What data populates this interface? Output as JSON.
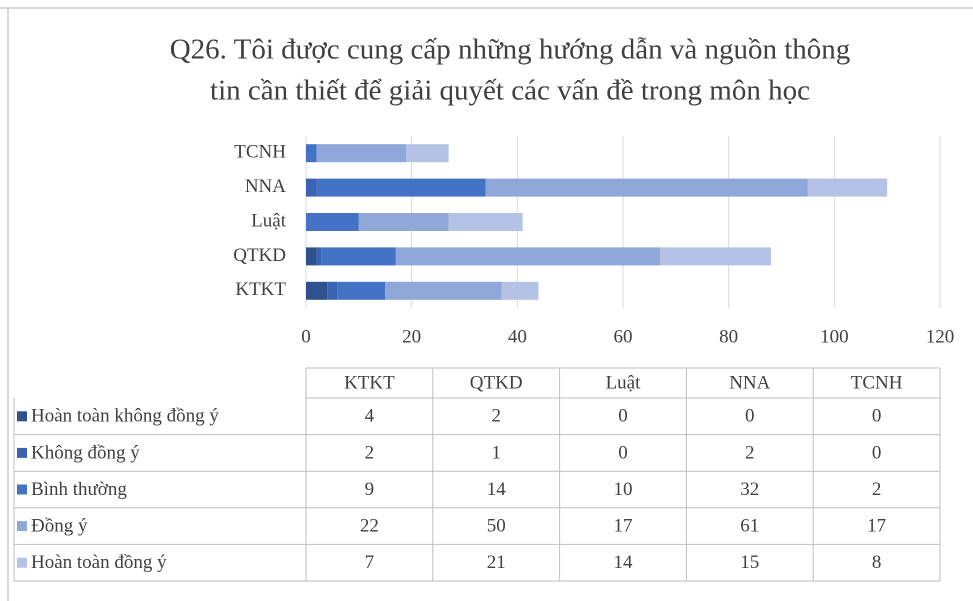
{
  "chart_data": {
    "type": "stacked_barh",
    "title": "Q26. Tôi được cung cấp những hướng dẫn và nguồn thông tin cần thiết để giải quyết các vấn đề trong môn học",
    "title_lines": [
      "Q26. Tôi được cung cấp những hướng dẫn và nguồn thông",
      "tin cần thiết để giải quyết các vấn đề trong môn học"
    ],
    "categories": [
      "KTKT",
      "QTKD",
      "Luật",
      "NNA",
      "TCNH"
    ],
    "series": [
      {
        "name": "Hoàn toàn không đồng ý",
        "color": "#2f528f",
        "values": [
          4,
          2,
          0,
          0,
          0
        ]
      },
      {
        "name": "Không đồng ý",
        "color": "#3b63b4",
        "values": [
          2,
          1,
          0,
          2,
          0
        ]
      },
      {
        "name": "Bình thường",
        "color": "#4472c4",
        "values": [
          9,
          14,
          10,
          32,
          2
        ]
      },
      {
        "name": "Đồng ý",
        "color": "#8fa7d9",
        "values": [
          22,
          50,
          17,
          61,
          17
        ]
      },
      {
        "name": "Hoàn toàn đồng ý",
        "color": "#b4c2e6",
        "values": [
          7,
          21,
          14,
          15,
          8
        ]
      }
    ],
    "xlim": [
      0,
      120
    ],
    "xticks": [
      0,
      20,
      40,
      60,
      80,
      100,
      120
    ],
    "grid": true,
    "data_table": true
  }
}
